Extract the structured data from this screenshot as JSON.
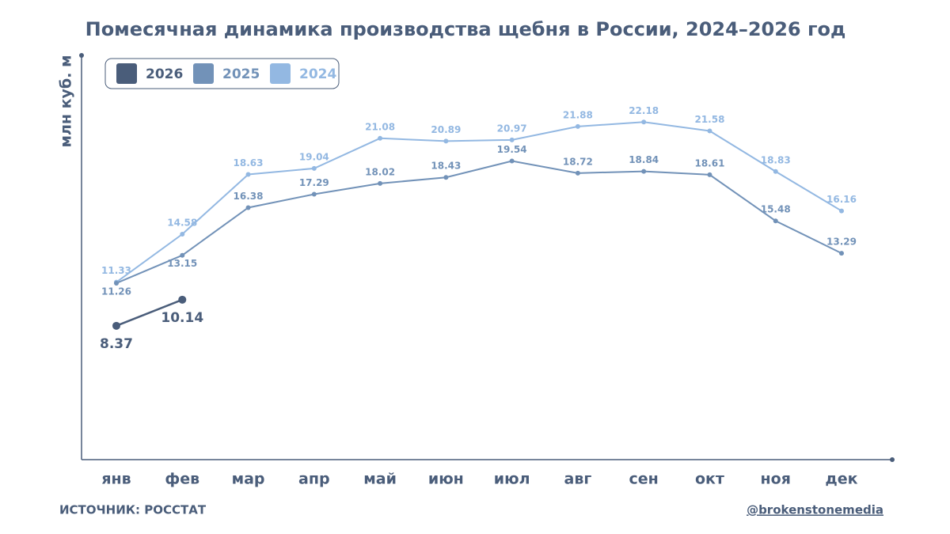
{
  "chart_data": {
    "type": "line",
    "title": "Помесячная динамика производства щебня в России, 2024–2026 год",
    "ylabel": "млн куб. м",
    "source": "ИСТОЧНИК: РОССТАТ",
    "credit": "@brokenstonemedia",
    "categories": [
      "янв",
      "фев",
      "мар",
      "апр",
      "май",
      "июн",
      "июл",
      "авг",
      "сен",
      "окт",
      "ноя",
      "дек"
    ],
    "series": [
      {
        "name": "2026",
        "color": "#4a5d7a",
        "values": [
          8.37,
          10.14,
          null,
          null,
          null,
          null,
          null,
          null,
          null,
          null,
          null,
          null
        ]
      },
      {
        "name": "2025",
        "color": "#7292b8",
        "values": [
          11.26,
          13.15,
          16.38,
          17.29,
          18.02,
          18.43,
          19.54,
          18.72,
          18.84,
          18.61,
          15.48,
          13.29
        ]
      },
      {
        "name": "2024",
        "color": "#93b8e2",
        "values": [
          11.33,
          14.58,
          18.63,
          19.04,
          21.08,
          20.89,
          20.97,
          21.88,
          22.18,
          21.58,
          18.83,
          16.16
        ]
      }
    ],
    "ylim": [
      -0.7,
      26.7
    ],
    "legend": "top-left"
  }
}
